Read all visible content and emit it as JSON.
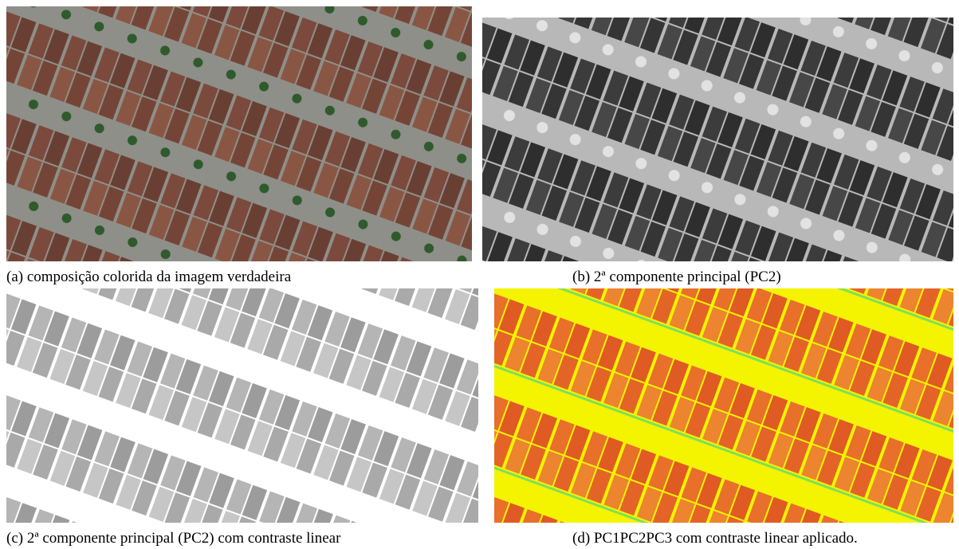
{
  "figure": {
    "panels": [
      {
        "caption": "(a) composição colorida da imagem verdadeira"
      },
      {
        "caption": "(b) 2ª componente principal (PC2)"
      },
      {
        "caption": "(c) 2ª componente principal (PC2) com contraste linear"
      },
      {
        "caption": "(d) PC1PC2PC3 com contraste linear aplicado."
      }
    ]
  }
}
